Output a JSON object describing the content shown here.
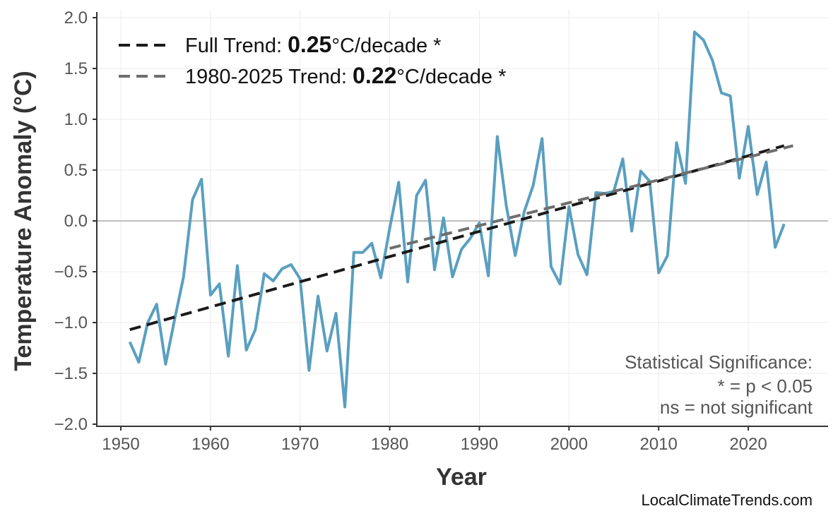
{
  "chart_data": {
    "type": "line",
    "xlabel": "Year",
    "ylabel": "Temperature Anomaly (°C)",
    "xlim": [
      1947,
      2029
    ],
    "ylim": [
      -2.05,
      2.05
    ],
    "xticks": [
      1950,
      1960,
      1970,
      1980,
      1990,
      2000,
      2010,
      2020
    ],
    "yticks": [
      "2.0",
      "1.5",
      "1.0",
      "0.5",
      "0.0",
      "−0.5",
      "−1.0",
      "−1.5",
      "−2.0"
    ],
    "ytick_values": [
      2.0,
      1.5,
      1.0,
      0.5,
      0.0,
      -0.5,
      -1.0,
      -1.5,
      -2.0
    ],
    "grid": true,
    "series_color": "#5a9fc0",
    "x": [
      1951,
      1952,
      1953,
      1954,
      1955,
      1956,
      1957,
      1958,
      1959,
      1960,
      1961,
      1962,
      1963,
      1964,
      1965,
      1966,
      1967,
      1968,
      1969,
      1970,
      1971,
      1972,
      1973,
      1974,
      1975,
      1976,
      1977,
      1978,
      1979,
      1980,
      1981,
      1982,
      1983,
      1984,
      1985,
      1986,
      1987,
      1988,
      1989,
      1990,
      1991,
      1992,
      1993,
      1994,
      1995,
      1996,
      1997,
      1998,
      1999,
      2000,
      2001,
      2002,
      2003,
      2004,
      2005,
      2006,
      2007,
      2008,
      2009,
      2010,
      2011,
      2012,
      2013,
      2014,
      2015,
      2016,
      2017,
      2018,
      2019,
      2020,
      2021,
      2022,
      2023,
      2024
    ],
    "values": [
      -1.19,
      -1.39,
      -1.0,
      -0.82,
      -1.41,
      -0.97,
      -0.55,
      0.21,
      0.41,
      -0.73,
      -0.62,
      -1.33,
      -0.44,
      -1.27,
      -1.07,
      -0.52,
      -0.59,
      -0.47,
      -0.43,
      -0.57,
      -1.47,
      -0.74,
      -1.28,
      -0.91,
      -1.83,
      -0.31,
      -0.31,
      -0.22,
      -0.56,
      -0.07,
      0.38,
      -0.6,
      0.25,
      0.4,
      -0.48,
      0.03,
      -0.55,
      -0.28,
      -0.17,
      -0.02,
      -0.54,
      0.83,
      0.15,
      -0.34,
      0.09,
      0.35,
      0.81,
      -0.45,
      -0.62,
      0.14,
      -0.33,
      -0.53,
      0.28,
      0.27,
      0.29,
      0.61,
      -0.1,
      0.49,
      0.39,
      -0.51,
      -0.34,
      0.77,
      0.37,
      1.86,
      1.78,
      1.58,
      1.26,
      1.23,
      0.42,
      0.93,
      0.26,
      0.58,
      -0.26,
      -0.03
    ],
    "trends": [
      {
        "prefix": "Full Trend: ",
        "rate": "0.25",
        "suffix": "°C/decade *",
        "x": [
          1951,
          2024
        ],
        "y": [
          -1.07,
          0.74
        ],
        "color": "#1a1a1a"
      },
      {
        "prefix": "1980-2025 Trend: ",
        "rate": "0.22",
        "suffix": "°C/decade *",
        "x": [
          1980,
          2025
        ],
        "y": [
          -0.27,
          0.74
        ],
        "color": "#6e6e6e"
      }
    ],
    "legend_placement": "top-left",
    "annotation": [
      "Statistical Significance:",
      "* = p < 0.05",
      "ns = not significant"
    ]
  },
  "watermark": "LocalClimateTrends.com"
}
